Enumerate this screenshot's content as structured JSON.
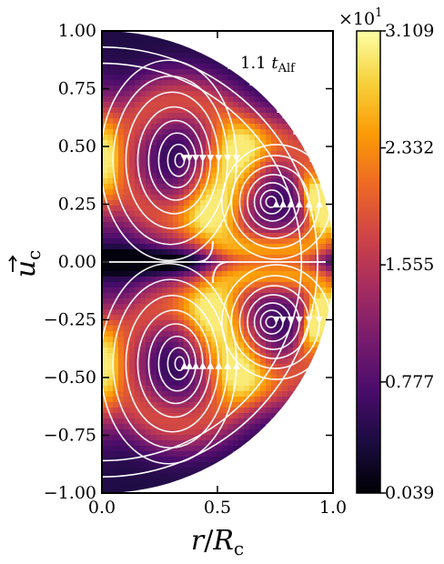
{
  "chart_data": {
    "type": "heatmap",
    "subtype": "streamline-over-speed-colormap",
    "annotation": {
      "main": "1.1 ",
      "t": "t",
      "sub": "Alf"
    },
    "xlabel": {
      "r": "r",
      "slash": "/",
      "R": "R",
      "sub": "c"
    },
    "ylabel": {
      "u": "u",
      "sub": "c"
    },
    "x_ticks": [
      "0.0",
      "0.5",
      "1.0"
    ],
    "x_tick_values": [
      0.0,
      0.5,
      1.0
    ],
    "y_ticks": [
      "1.00",
      "0.75",
      "0.50",
      "0.25",
      "0.00",
      "−0.25",
      "−0.50",
      "−0.75",
      "−1.00"
    ],
    "y_tick_values": [
      1.0,
      0.75,
      0.5,
      0.25,
      0.0,
      -0.25,
      -0.5,
      -0.75,
      -1.0
    ],
    "xlim": [
      0.0,
      1.0
    ],
    "ylim": [
      -1.0,
      1.0
    ],
    "colorbar": {
      "colormap": "inferno",
      "ticks": [
        "3.109",
        "2.332",
        "1.555",
        "0.777",
        "0.039"
      ],
      "tick_values": [
        3.109,
        2.332,
        1.555,
        0.777,
        0.039
      ],
      "range": [
        0.039,
        3.109
      ],
      "multiplier": {
        "base": "×10",
        "exp": "1"
      }
    },
    "vortices": [
      {
        "center": [
          0.34,
          0.44
        ],
        "rotation": "clockwise"
      },
      {
        "center": [
          0.73,
          0.26
        ],
        "rotation": "counterclockwise"
      },
      {
        "center": [
          0.34,
          -0.44
        ],
        "rotation": "counterclockwise"
      },
      {
        "center": [
          0.73,
          -0.26
        ],
        "rotation": "clockwise"
      }
    ],
    "colors": {
      "streamline": "#ffffff",
      "inferno": [
        "#000004",
        "#1b0c41",
        "#4a0c6b",
        "#781c6d",
        "#a52c60",
        "#cf4446",
        "#ed6925",
        "#fb9b06",
        "#f7d13d",
        "#fcffa4"
      ]
    }
  }
}
